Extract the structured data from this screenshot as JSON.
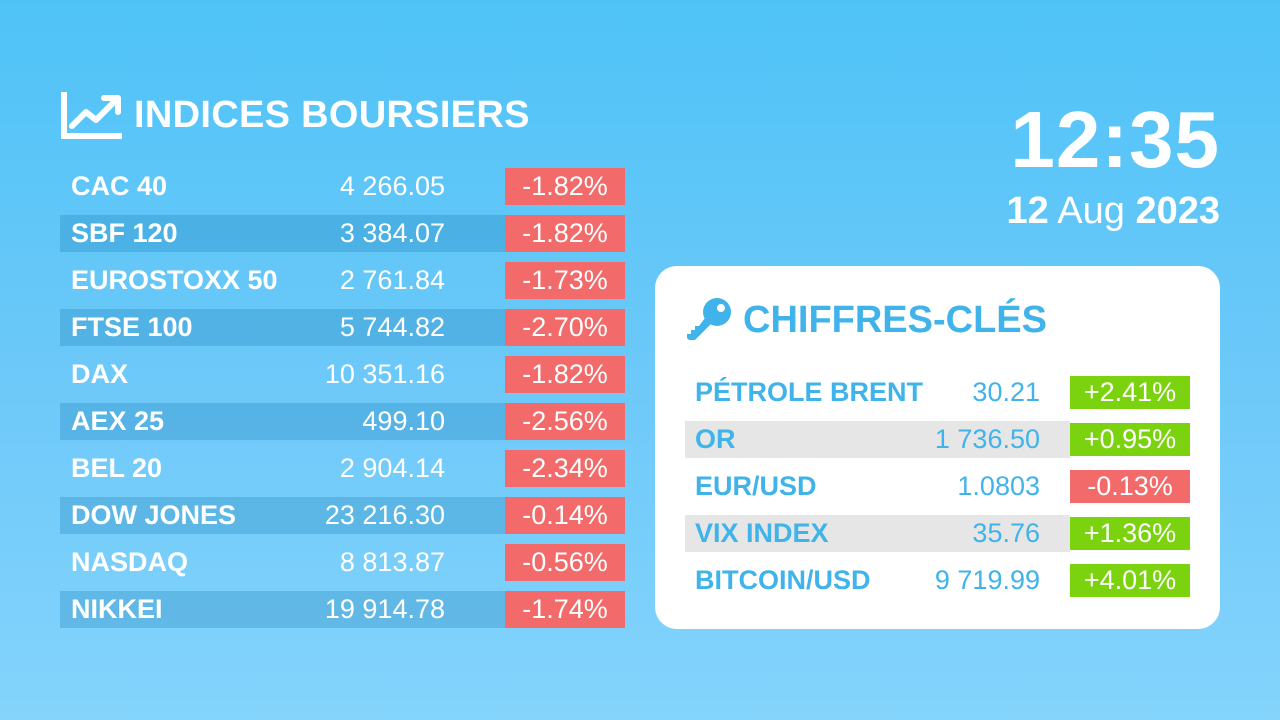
{
  "indices": {
    "title": "INDICES BOURSIERS",
    "icon": "trending-up-chart-icon",
    "rows": [
      {
        "name": "CAC 40",
        "value": "4 266.05",
        "change": "-1.82%"
      },
      {
        "name": "SBF 120",
        "value": "3 384.07",
        "change": "-1.82%"
      },
      {
        "name": "EUROSTOXX 50",
        "value": "2 761.84",
        "change": "-1.73%"
      },
      {
        "name": "FTSE 100",
        "value": "5 744.82",
        "change": "-2.70%"
      },
      {
        "name": "DAX",
        "value": "10 351.16",
        "change": "-1.82%"
      },
      {
        "name": "AEX 25",
        "value": "499.10",
        "change": "-2.56%"
      },
      {
        "name": "BEL 20",
        "value": "2 904.14",
        "change": "-2.34%"
      },
      {
        "name": "DOW JONES",
        "value": "23 216.30",
        "change": "-0.14%"
      },
      {
        "name": "NASDAQ",
        "value": "8 813.87",
        "change": "-0.56%"
      },
      {
        "name": "NIKKEI",
        "value": "19 914.78",
        "change": "-1.74%"
      }
    ]
  },
  "clock": {
    "time": "12:35",
    "day": "12",
    "month": "Aug",
    "year": "2023"
  },
  "key_figures": {
    "title": "CHIFFRES-CLÉS",
    "icon": "key-icon",
    "rows": [
      {
        "name": "PÉTROLE BRENT",
        "value": "30.21",
        "change": "+2.41%",
        "direction": "up"
      },
      {
        "name": "OR",
        "value": "1 736.50",
        "change": "+0.95%",
        "direction": "up"
      },
      {
        "name": "EUR/USD",
        "value": "1.0803",
        "change": "-0.13%",
        "direction": "down"
      },
      {
        "name": "VIX INDEX",
        "value": "35.76",
        "change": "+1.36%",
        "direction": "up"
      },
      {
        "name": "BITCOIN/USD",
        "value": "9 719.99",
        "change": "+4.01%",
        "direction": "up"
      }
    ]
  },
  "colors": {
    "background_top": "#4fc3f7",
    "background_bottom": "#84d4fc",
    "negative": "#f26a6a",
    "positive": "#7bd30f",
    "accent_text": "#3fb3ea"
  }
}
